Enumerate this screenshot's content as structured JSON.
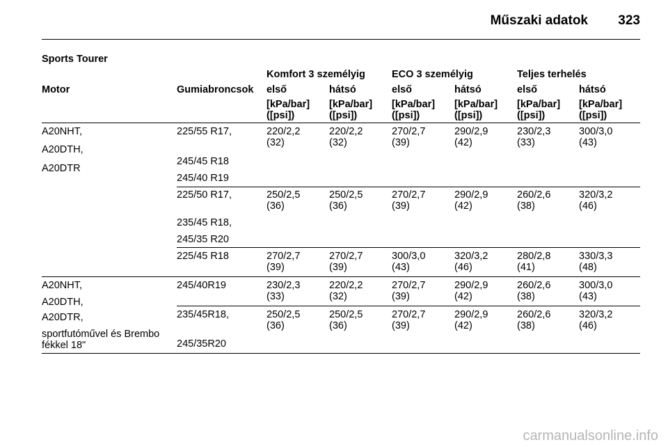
{
  "header": {
    "title": "Műszaki adatok",
    "page": "323"
  },
  "section": "Sports Tourer",
  "groups": {
    "komfort": "Komfort 3 személyig",
    "eco": "ECO 3 személyig",
    "teljes": "Teljes terhelés"
  },
  "columns": {
    "motor": "Motor",
    "tyres": "Gumiabroncsok",
    "front": "első",
    "rear": "hátsó",
    "unit1": "[kPa/bar]",
    "unit2": "([psi])"
  },
  "rows": [
    {
      "motor": [
        "A20NHT,",
        "A20DTH,",
        "A20DTR"
      ],
      "tyres": [
        "225/55 R17,",
        "245/45 R18",
        "245/40 R19"
      ],
      "values": [
        [
          "220/2,2",
          "(32)"
        ],
        [
          "220/2,2",
          "(32)"
        ],
        [
          "270/2,7",
          "(39)"
        ],
        [
          "290/2,9",
          "(42)"
        ],
        [
          "230/2,3",
          "(33)"
        ],
        [
          "300/3,0",
          "(43)"
        ]
      ]
    },
    {
      "tyres": [
        "225/50 R17,",
        "235/45 R18,",
        "245/35 R20"
      ],
      "values": [
        [
          "250/2,5",
          "(36)"
        ],
        [
          "250/2,5",
          "(36)"
        ],
        [
          "270/2,7",
          "(39)"
        ],
        [
          "290/2,9",
          "(42)"
        ],
        [
          "260/2,6",
          "(38)"
        ],
        [
          "320/3,2",
          "(46)"
        ]
      ]
    },
    {
      "tyres": [
        "225/45 R18"
      ],
      "values": [
        [
          "270/2,7",
          "(39)"
        ],
        [
          "270/2,7",
          "(39)"
        ],
        [
          "300/3,0",
          "(43)"
        ],
        [
          "320/3,2",
          "(46)"
        ],
        [
          "280/2,8",
          "(41)"
        ],
        [
          "330/3,3",
          "(48)"
        ]
      ]
    },
    {
      "motor": [
        "A20NHT,",
        "A20DTH,",
        "A20DTR,",
        "sportfutóművel és Brembo",
        "fékkel 18\""
      ],
      "tyres": [
        "245/40R19"
      ],
      "values": [
        [
          "230/2,3",
          "(33)"
        ],
        [
          "220/2,2",
          "(32)"
        ],
        [
          "270/2,7",
          "(39)"
        ],
        [
          "290/2,9",
          "(42)"
        ],
        [
          "260/2,6",
          "(38)"
        ],
        [
          "300/3,0",
          "(43)"
        ]
      ]
    },
    {
      "tyres": [
        "235/45R18,",
        "245/35R20"
      ],
      "values": [
        [
          "250/2,5",
          "(36)"
        ],
        [
          "250/2,5",
          "(36)"
        ],
        [
          "270/2,7",
          "(39)"
        ],
        [
          "290/2,9",
          "(42)"
        ],
        [
          "260/2,6",
          "(38)"
        ],
        [
          "320/3,2",
          "(46)"
        ]
      ]
    }
  ],
  "watermark": "carmanualsonline.info"
}
